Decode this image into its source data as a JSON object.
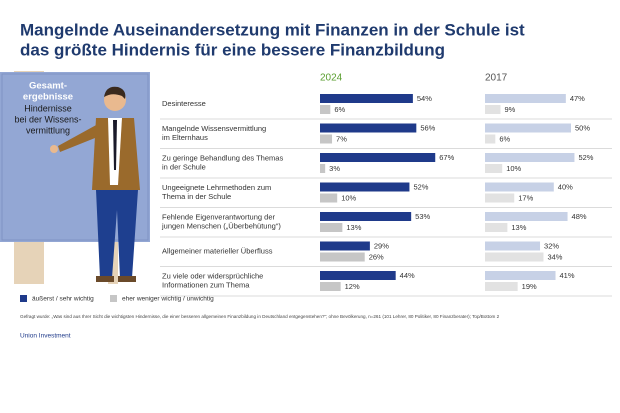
{
  "title_lines": [
    "Mangelnde Auseinandersetzung mit Finanzen in der Schule ist",
    "das größte Hindernis für eine bessere Finanzbildung"
  ],
  "board": {
    "heading": [
      "Gesamt-",
      "ergebnisse"
    ],
    "lines": [
      "Hindernisse",
      "bei der Wissens-",
      "vermittlung"
    ]
  },
  "chart_data": [
    {
      "type": "bar",
      "orientation": "horizontal",
      "title": "2024",
      "title_color": "#5a9e2f",
      "categories": [
        "Desinteresse",
        "Mangelnde Wissensvermittlung\nim Elternhaus",
        "Zu geringe Behandlung des Themas\nin der Schule",
        "Ungeeignete Lehrmethoden zum\nThema in der Schule",
        "Fehlende Eigenverantwortung der\njungen Menschen („Überbehütung“)",
        "Allgemeiner materieller Überfluss",
        "Zu viele oder widersprüchliche\nInformationen zum Thema"
      ],
      "series": [
        {
          "name": "äußerst / sehr wichtig",
          "color": "#1f3a8a",
          "values": [
            54,
            56,
            67,
            52,
            53,
            29,
            44
          ],
          "value_labels": [
            "54%",
            "56%",
            "67%",
            "52%",
            "53%",
            "29%",
            "44%"
          ]
        },
        {
          "name": "eher weniger wichtig / unwichtig",
          "color": "#c6c6c6",
          "values": [
            6,
            7,
            3,
            10,
            13,
            26,
            12
          ],
          "value_labels": [
            "6%",
            "7%",
            "3%",
            "10%",
            "13%",
            "26%",
            "12%"
          ]
        }
      ]
    },
    {
      "type": "bar",
      "orientation": "horizontal",
      "title": "2017",
      "title_color": "#555555",
      "series": [
        {
          "color": "#c7d1e6",
          "values": [
            47,
            50,
            52,
            40,
            48,
            32,
            41
          ],
          "value_labels": [
            "47%",
            "50%",
            "52%",
            "40%",
            "48%",
            "32%",
            "41%"
          ]
        },
        {
          "color": "#e2e2e2",
          "values": [
            9,
            6,
            10,
            17,
            13,
            34,
            19
          ],
          "value_labels": [
            "9%",
            "6%",
            "10%",
            "17%",
            "13%",
            "34%",
            "19%"
          ]
        }
      ]
    }
  ],
  "footnote": "Gefragt wurde: „Was sind aus Ihrer Sicht die wichtigsten Hindernisse, die einer besseren allgemeinen Finanzbildung in Deutschland entgegenstehen?“; ohne Bevölkerung, n=261 (101 Lehrer, 80 Politiker, 80 Finanzberater); Top/Bottom 2",
  "source": "Union Investment"
}
